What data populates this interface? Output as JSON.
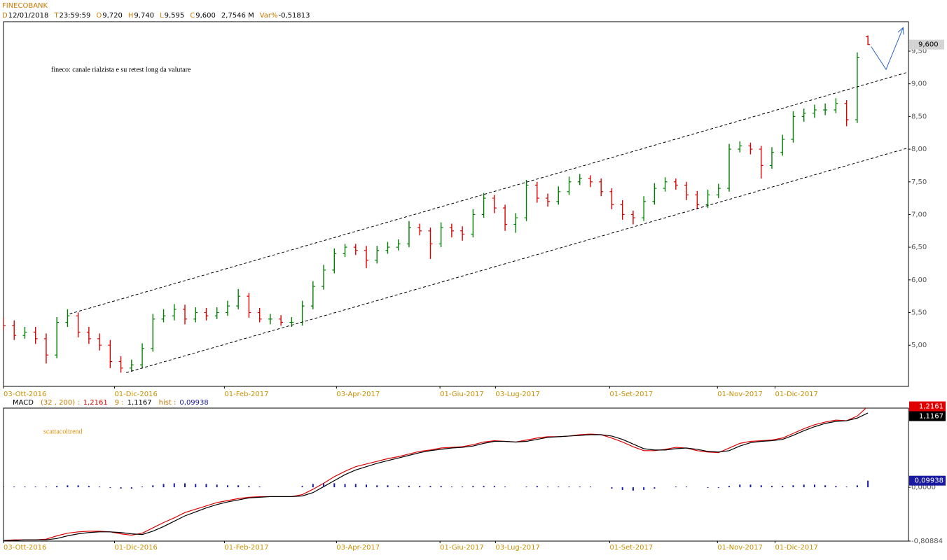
{
  "header": {
    "title": "FINECOBANK",
    "fields": [
      {
        "key": "D",
        "value": "12/01/2018"
      },
      {
        "key": "T",
        "value": "23:59:59"
      },
      {
        "key": "O",
        "value": "9,720"
      },
      {
        "key": "H",
        "value": "9,740"
      },
      {
        "key": "L",
        "value": "9,595"
      },
      {
        "key": "C",
        "value": "9,600"
      },
      {
        "value": "2,7546 M"
      },
      {
        "key": "Var%",
        "value": "-0,51813"
      }
    ]
  },
  "chart_data": [
    {
      "type": "ohlc",
      "annotation": "fineco: canale rialzista e su retest long da valutare",
      "xlim": [
        0,
        84.8
      ],
      "xticks": [
        {
          "value": 0,
          "label": "03-Ott-2016"
        },
        {
          "value": 10.4,
          "label": "01-Dic-2016"
        },
        {
          "value": 20.7,
          "label": "01-Feb-2017"
        },
        {
          "value": 31.2,
          "label": "03-Apr-2017"
        },
        {
          "value": 40.9,
          "label": "01-Giu-2017"
        },
        {
          "value": 46.1,
          "label": "03-Lug-2017"
        },
        {
          "value": 56.8,
          "label": "01-Set-2017"
        },
        {
          "value": 66.9,
          "label": "01-Nov-2017"
        },
        {
          "value": 72.3,
          "label": "01-Dic-2017"
        }
      ],
      "ylim": [
        4.37,
        9.95
      ],
      "yticks": [
        {
          "value": 5,
          "label": "5,00"
        },
        {
          "value": 5.5,
          "label": "5,50"
        },
        {
          "value": 6,
          "label": "6,00"
        },
        {
          "value": 6.5,
          "label": "6,50"
        },
        {
          "value": 7,
          "label": "7,00"
        },
        {
          "value": 7.5,
          "label": "7,50"
        },
        {
          "value": 8,
          "label": "8,00"
        },
        {
          "value": 8.5,
          "label": "8,50"
        },
        {
          "value": 9,
          "label": "9,00"
        },
        {
          "value": 9.5,
          "label": "9,50"
        }
      ],
      "up_color": "#008000",
      "down_color": "#e00000",
      "open": [
        5.35,
        5.3,
        5.15,
        5.2,
        5.1,
        4.85,
        5.35,
        5.45,
        5.2,
        5.1,
        5.0,
        4.75,
        4.65,
        4.7,
        4.95,
        5.4,
        5.45,
        5.55,
        5.4,
        5.5,
        5.45,
        5.5,
        5.6,
        5.75,
        5.5,
        5.4,
        5.4,
        5.35,
        5.35,
        5.6,
        5.9,
        6.15,
        6.4,
        6.5,
        6.45,
        6.3,
        6.45,
        6.5,
        6.55,
        6.8,
        6.75,
        6.55,
        6.8,
        6.75,
        6.7,
        7.0,
        7.25,
        7.1,
        6.85,
        6.95,
        7.45,
        7.25,
        7.2,
        7.35,
        7.5,
        7.55,
        7.5,
        7.35,
        7.15,
        7.0,
        6.95,
        7.2,
        7.4,
        7.5,
        7.45,
        7.3,
        7.15,
        7.3,
        7.4,
        8.0,
        8.05,
        8.0,
        7.75,
        7.95,
        8.15,
        8.5,
        8.55,
        8.6,
        8.6,
        8.7,
        8.45,
        9.72
      ],
      "high": [
        5.43,
        5.38,
        5.28,
        5.28,
        5.18,
        5.43,
        5.55,
        5.5,
        5.28,
        5.18,
        5.08,
        4.83,
        4.78,
        5.03,
        5.48,
        5.55,
        5.63,
        5.62,
        5.58,
        5.57,
        5.58,
        5.68,
        5.86,
        5.8,
        5.57,
        5.48,
        5.46,
        5.43,
        5.68,
        5.98,
        6.23,
        6.48,
        6.55,
        6.55,
        6.52,
        6.52,
        6.58,
        6.62,
        6.9,
        6.86,
        6.8,
        6.88,
        6.86,
        6.82,
        7.08,
        7.33,
        7.3,
        7.15,
        7.02,
        7.53,
        7.5,
        7.32,
        7.43,
        7.58,
        7.62,
        7.6,
        7.55,
        7.4,
        7.22,
        7.06,
        7.28,
        7.48,
        7.57,
        7.55,
        7.5,
        7.36,
        7.38,
        7.47,
        8.08,
        8.12,
        8.1,
        8.05,
        8.03,
        8.22,
        8.58,
        8.62,
        8.68,
        8.7,
        8.78,
        8.75,
        9.48,
        9.74
      ],
      "low": [
        5.22,
        5.08,
        5.1,
        5.02,
        4.72,
        4.8,
        5.28,
        5.12,
        5.02,
        4.92,
        4.65,
        4.58,
        4.6,
        4.65,
        4.9,
        5.35,
        5.38,
        5.32,
        5.35,
        5.38,
        5.4,
        5.45,
        5.55,
        5.42,
        5.35,
        5.32,
        5.3,
        5.28,
        5.3,
        5.55,
        5.85,
        6.1,
        6.35,
        6.38,
        6.18,
        6.25,
        6.4,
        6.45,
        6.5,
        6.68,
        6.32,
        6.5,
        6.65,
        6.6,
        6.65,
        6.95,
        7.02,
        6.75,
        6.72,
        6.9,
        7.18,
        7.12,
        7.15,
        7.3,
        7.45,
        7.42,
        7.28,
        7.08,
        6.92,
        6.85,
        6.9,
        7.15,
        7.35,
        7.38,
        7.22,
        7.08,
        7.1,
        7.25,
        7.35,
        7.95,
        7.92,
        7.55,
        7.7,
        7.9,
        8.1,
        8.42,
        8.48,
        8.52,
        8.55,
        8.35,
        8.4,
        9.595
      ],
      "close": [
        5.3,
        5.15,
        5.2,
        5.1,
        4.85,
        5.35,
        5.45,
        5.2,
        5.1,
        5.0,
        4.75,
        4.65,
        4.7,
        4.95,
        5.4,
        5.45,
        5.55,
        5.4,
        5.5,
        5.45,
        5.5,
        5.6,
        5.75,
        5.5,
        5.4,
        5.4,
        5.35,
        5.35,
        5.6,
        5.9,
        6.15,
        6.4,
        6.5,
        6.45,
        6.3,
        6.45,
        6.5,
        6.55,
        6.8,
        6.75,
        6.55,
        6.8,
        6.75,
        6.7,
        7.0,
        7.25,
        7.1,
        6.85,
        6.95,
        7.45,
        7.25,
        7.2,
        7.35,
        7.5,
        7.55,
        7.5,
        7.35,
        7.15,
        7.0,
        6.95,
        7.2,
        7.4,
        7.5,
        7.45,
        7.3,
        7.15,
        7.3,
        7.4,
        8.0,
        8.05,
        8.0,
        7.75,
        7.95,
        8.15,
        8.5,
        8.55,
        8.6,
        8.6,
        8.7,
        8.45,
        9.4,
        9.6
      ],
      "last_value_label": "9,600",
      "trend_lines": [
        {
          "color": "#000000",
          "dashed": true,
          "x": [
            6.2,
            84.8
          ],
          "y": [
            5.48,
            9.18
          ]
        },
        {
          "color": "#000000",
          "dashed": true,
          "x": [
            11.5,
            84.8
          ],
          "y": [
            4.58,
            8.02
          ]
        },
        {
          "color": "#2a64c8",
          "dashed": false,
          "arrow": true,
          "x": [
            81.3,
            82.7,
            84.3
          ],
          "y": [
            9.57,
            9.22,
            9.86
          ]
        }
      ]
    },
    {
      "type": "macd",
      "title": "MACD",
      "annotation": "scattacoltrend",
      "xlim": [
        0,
        84.8
      ],
      "xticks": [
        {
          "value": 0,
          "label": "03-Ott-2016"
        },
        {
          "value": 10.4,
          "label": "01-Dic-2016"
        },
        {
          "value": 20.7,
          "label": "01-Feb-2017"
        },
        {
          "value": 31.2,
          "label": "03-Apr-2017"
        },
        {
          "value": 40.9,
          "label": "01-Giu-2017"
        },
        {
          "value": 46.1,
          "label": "03-Lug-2017"
        },
        {
          "value": 56.8,
          "label": "01-Set-2017"
        },
        {
          "value": 66.9,
          "label": "01-Nov-2017"
        },
        {
          "value": 72.3,
          "label": "01-Dic-2017"
        }
      ],
      "ylim": [
        -0.80884,
        1.19
      ],
      "yticks": [
        {
          "value": 0,
          "label": "0,0000"
        },
        {
          "value": -0.80884,
          "label": "-0,80884"
        }
      ],
      "series": [
        {
          "name": "(32 , 200) :",
          "color": "#e00000",
          "kind": "line",
          "value_label": "1,2161",
          "values": [
            -0.8,
            -0.79,
            -0.79,
            -0.79,
            -0.78,
            -0.73,
            -0.69,
            -0.67,
            -0.66,
            -0.66,
            -0.67,
            -0.7,
            -0.72,
            -0.69,
            -0.61,
            -0.53,
            -0.46,
            -0.38,
            -0.33,
            -0.28,
            -0.23,
            -0.2,
            -0.17,
            -0.15,
            -0.14,
            -0.14,
            -0.14,
            -0.14,
            -0.11,
            -0.03,
            0.06,
            0.16,
            0.24,
            0.31,
            0.35,
            0.39,
            0.43,
            0.46,
            0.5,
            0.54,
            0.56,
            0.59,
            0.6,
            0.61,
            0.64,
            0.68,
            0.7,
            0.69,
            0.68,
            0.71,
            0.74,
            0.76,
            0.76,
            0.77,
            0.79,
            0.8,
            0.79,
            0.74,
            0.68,
            0.61,
            0.55,
            0.55,
            0.57,
            0.6,
            0.59,
            0.55,
            0.53,
            0.52,
            0.59,
            0.66,
            0.69,
            0.7,
            0.71,
            0.74,
            0.81,
            0.88,
            0.94,
            0.98,
            1.01,
            1.0,
            1.07,
            1.2161
          ]
        },
        {
          "name": "9 :",
          "color": "#000000",
          "kind": "line",
          "value_label": "1,1167",
          "values": [
            -0.8,
            -0.8,
            -0.79,
            -0.79,
            -0.79,
            -0.77,
            -0.73,
            -0.7,
            -0.68,
            -0.67,
            -0.67,
            -0.68,
            -0.7,
            -0.71,
            -0.66,
            -0.59,
            -0.51,
            -0.43,
            -0.37,
            -0.31,
            -0.26,
            -0.22,
            -0.19,
            -0.16,
            -0.15,
            -0.14,
            -0.14,
            -0.14,
            -0.13,
            -0.08,
            0.01,
            0.1,
            0.19,
            0.26,
            0.31,
            0.36,
            0.4,
            0.44,
            0.48,
            0.52,
            0.55,
            0.57,
            0.59,
            0.6,
            0.62,
            0.66,
            0.69,
            0.69,
            0.68,
            0.69,
            0.72,
            0.75,
            0.76,
            0.77,
            0.78,
            0.79,
            0.79,
            0.77,
            0.72,
            0.65,
            0.58,
            0.56,
            0.56,
            0.58,
            0.59,
            0.57,
            0.54,
            0.53,
            0.55,
            0.62,
            0.67,
            0.69,
            0.7,
            0.72,
            0.78,
            0.85,
            0.91,
            0.96,
            0.99,
            1.0,
            1.04,
            1.1167
          ]
        },
        {
          "name": "hist :",
          "color": "#1a1aa0",
          "kind": "hist",
          "value_label": "0,09938",
          "values": [
            0.01,
            0.01,
            0.01,
            0.01,
            0.01,
            0.02,
            0.03,
            0.03,
            0.02,
            0.01,
            -0.01,
            -0.02,
            -0.02,
            0.01,
            0.03,
            0.05,
            0.06,
            0.06,
            0.05,
            0.05,
            0.04,
            0.03,
            0.03,
            0.02,
            0.01,
            0.0,
            0.0,
            0.0,
            0.02,
            0.05,
            0.06,
            0.06,
            0.05,
            0.05,
            0.04,
            0.03,
            0.03,
            0.02,
            0.02,
            0.02,
            0.02,
            0.02,
            0.01,
            0.01,
            0.02,
            0.02,
            0.02,
            0.01,
            0.0,
            0.01,
            0.02,
            0.01,
            0.01,
            0.01,
            0.01,
            0.01,
            0.0,
            -0.02,
            -0.04,
            -0.05,
            -0.04,
            -0.02,
            0.0,
            0.01,
            0.01,
            0.0,
            -0.01,
            -0.01,
            0.02,
            0.04,
            0.04,
            0.03,
            0.02,
            0.02,
            0.03,
            0.04,
            0.04,
            0.03,
            0.02,
            0.01,
            0.03,
            0.09938
          ]
        }
      ]
    }
  ]
}
